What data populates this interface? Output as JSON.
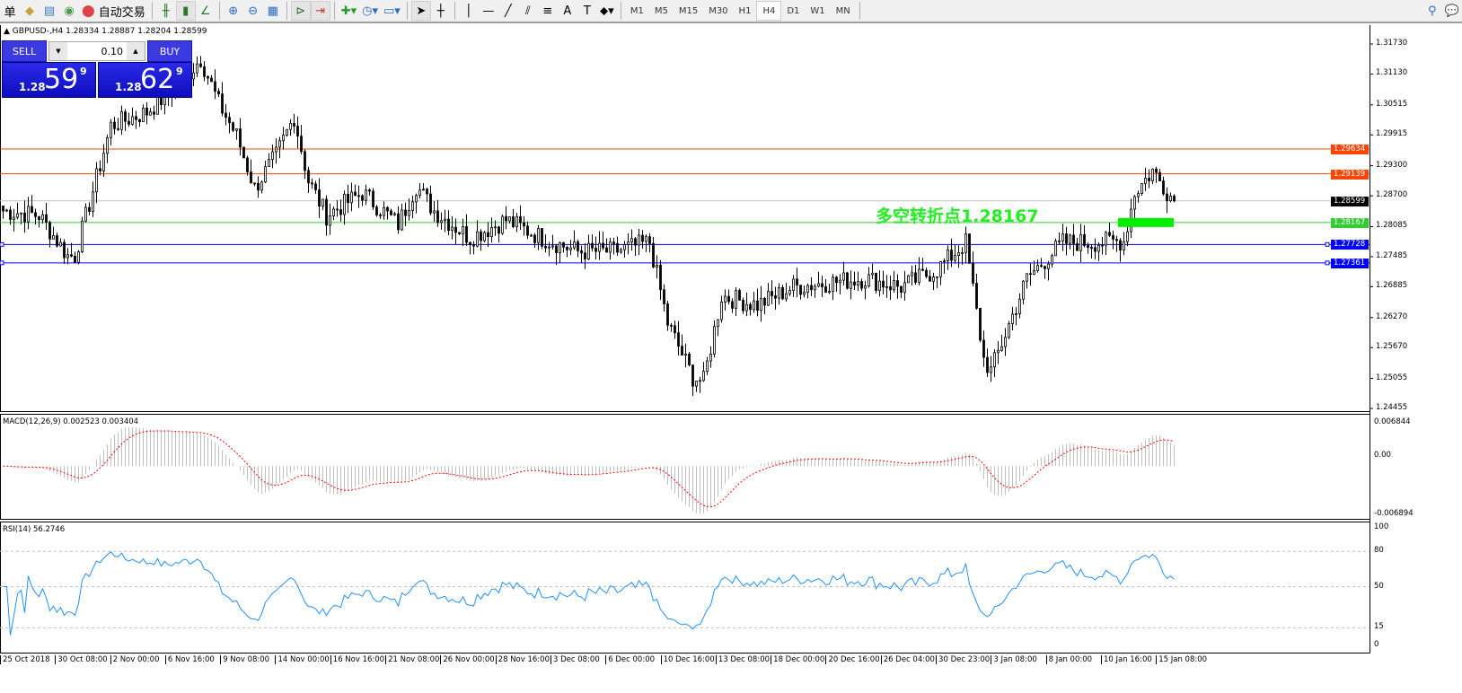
{
  "toolbar": {
    "menu_fragment": "单",
    "autotrade_label": "自动交易",
    "timeframes": [
      "M1",
      "M5",
      "M15",
      "M30",
      "H1",
      "H4",
      "D1",
      "W1",
      "MN"
    ],
    "active_timeframe": "H4",
    "icons": [
      "book-icon",
      "profile-icon",
      "signal-icon",
      "autotrade-icon",
      "bar-chart-icon",
      "candlestick-icon",
      "line-chart-icon",
      "zoom-in-icon",
      "zoom-out-icon",
      "tile-windows-icon",
      "autoscroll-icon",
      "chart-shift-icon",
      "add-indicator-icon",
      "periods-clock-icon",
      "templates-icon",
      "cursor-icon",
      "crosshair-icon",
      "vertical-line-icon",
      "horizontal-line-icon",
      "trendline-icon",
      "fibo-channel-icon",
      "fibo-icon",
      "text-icon",
      "text-label-icon",
      "arrows-icon",
      "search-icon",
      "chat-icon"
    ]
  },
  "chart": {
    "title": "GBPUSD-,H4  1.28334 1.28887 1.28204 1.28599",
    "symbol": "GBPUSD-",
    "timeframe": "H4",
    "open": 1.28334,
    "high": 1.28887,
    "low": 1.28204,
    "close": 1.28599
  },
  "trade_panel": {
    "sell_label": "SELL",
    "buy_label": "BUY",
    "lot": "0.10",
    "sell_prefix": "1.28",
    "sell_big": "59",
    "sell_sup": "9",
    "buy_prefix": "1.28",
    "buy_big": "62",
    "buy_sup": "9",
    "color": "#1a1ad8"
  },
  "annotation": {
    "text": "多空转折点1.28167",
    "color": "#22ee22"
  },
  "price_axis": {
    "ticks": [
      "1.31730",
      "1.31130",
      "1.30515",
      "1.29915",
      "1.29300",
      "1.28700",
      "1.28085",
      "1.27485",
      "1.26885",
      "1.26270",
      "1.25670",
      "1.25055",
      "1.24455"
    ],
    "range": [
      1.24455,
      1.3173
    ]
  },
  "levels": [
    {
      "price": "1.29634",
      "color": "#ff4500"
    },
    {
      "price": "1.29139",
      "color": "#ff4500"
    },
    {
      "price": "1.28599",
      "color": "#000000",
      "line": "#c0c0c0"
    },
    {
      "price": "1.28167",
      "color": "#33cc33"
    },
    {
      "price": "1.27728",
      "color": "#0000ff"
    },
    {
      "price": "1.27361",
      "color": "#0000ff"
    }
  ],
  "price_path": [
    [
      0,
      1.284
    ],
    [
      10,
      1.2831
    ],
    [
      18,
      1.275
    ],
    [
      20,
      1.275
    ],
    [
      30,
      1.301
    ],
    [
      40,
      1.3037
    ],
    [
      50,
      1.31
    ],
    [
      55,
      1.3144
    ],
    [
      60,
      1.3055
    ],
    [
      65,
      1.299
    ],
    [
      70,
      1.2885
    ],
    [
      76,
      1.295
    ],
    [
      81,
      1.3028
    ],
    [
      85,
      1.29
    ],
    [
      90,
      1.2831
    ],
    [
      100,
      1.2876
    ],
    [
      110,
      1.2813
    ],
    [
      115,
      1.289
    ],
    [
      120,
      1.284
    ],
    [
      130,
      1.2786
    ],
    [
      140,
      1.2822
    ],
    [
      150,
      1.2786
    ],
    [
      160,
      1.2759
    ],
    [
      170,
      1.2759
    ],
    [
      180,
      1.2777
    ],
    [
      185,
      1.2616
    ],
    [
      192,
      1.2508
    ],
    [
      195,
      1.25
    ],
    [
      200,
      1.267
    ],
    [
      210,
      1.2652
    ],
    [
      220,
      1.2688
    ],
    [
      230,
      1.2697
    ],
    [
      240,
      1.2705
    ],
    [
      250,
      1.2688
    ],
    [
      260,
      1.2723
    ],
    [
      268,
      1.2777
    ],
    [
      273,
      1.2544
    ],
    [
      275,
      1.252
    ],
    [
      285,
      1.2705
    ],
    [
      295,
      1.2777
    ],
    [
      305,
      1.2777
    ],
    [
      312,
      1.278
    ],
    [
      315,
      1.2876
    ],
    [
      320,
      1.292
    ],
    [
      326,
      1.28599
    ]
  ],
  "macd": {
    "label": "MACD(12,26,9) 0.002523 0.003404",
    "ticks": [
      "0.006844",
      "0.00",
      "-0.006894"
    ],
    "range": [
      -0.006894,
      0.006844
    ],
    "hist_color": "#c0c0c0",
    "signal_color": "#ff0000"
  },
  "rsi": {
    "label": "RSI(14) 56.2746",
    "ticks": [
      "100",
      "80",
      "50",
      "15",
      "0"
    ],
    "levels": [
      80,
      50,
      15
    ],
    "color": "#1e90ff"
  },
  "time_axis": [
    "25 Oct 2018",
    "30 Oct 08:00",
    "2 Nov 00:00",
    "6 Nov 16:00",
    "9 Nov 08:00",
    "14 Nov 00:00",
    "16 Nov 16:00",
    "21 Nov 08:00",
    "26 Nov 00:00",
    "28 Nov 16:00",
    "3 Dec 08:00",
    "6 Dec 00:00",
    "10 Dec 16:00",
    "13 Dec 08:00",
    "18 Dec 00:00",
    "20 Dec 16:00",
    "26 Dec 04:00",
    "30 Dec 23:00",
    "3 Jan 08:00",
    "8 Jan 00:00",
    "10 Jan 16:00",
    "15 Jan 08:00"
  ]
}
